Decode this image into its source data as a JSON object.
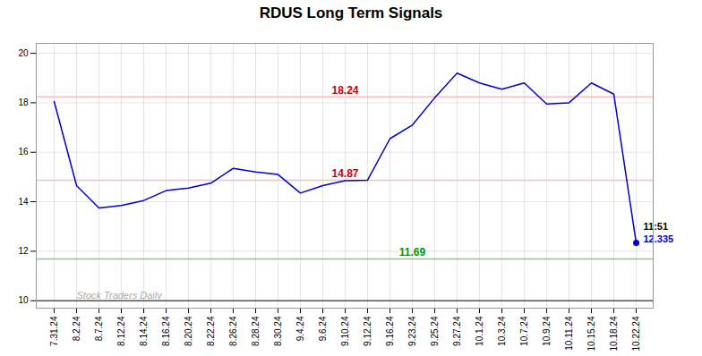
{
  "chart_data": {
    "type": "line",
    "title": "RDUS Long Term Signals",
    "categories": [
      "7.31.24",
      "8.2.24",
      "8.7.24",
      "8.12.24",
      "8.14.24",
      "8.16.24",
      "8.20.24",
      "8.22.24",
      "8.26.24",
      "8.28.24",
      "8.30.24",
      "9.4.24",
      "9.6.24",
      "9.10.24",
      "9.12.24",
      "9.16.24",
      "9.23.24",
      "9.25.24",
      "9.27.24",
      "10.1.24",
      "10.3.24",
      "10.7.24",
      "10.9.24",
      "10.11.24",
      "10.15.24",
      "10.18.24",
      "10.22.24"
    ],
    "values": [
      18.05,
      14.65,
      13.75,
      13.85,
      14.05,
      14.45,
      14.55,
      14.75,
      15.35,
      15.2,
      15.1,
      14.35,
      14.65,
      14.85,
      14.87,
      16.55,
      17.1,
      18.2,
      19.2,
      18.8,
      18.55,
      18.8,
      17.95,
      18.0,
      18.8,
      18.35,
      12.335
    ],
    "color": "#0000cc",
    "ylim": [
      9.7,
      20.4
    ],
    "yticks": [
      10,
      12,
      14,
      16,
      18,
      20
    ],
    "grid": true,
    "reference_lines": [
      {
        "y": 18.24,
        "color": "#ffbbbb",
        "label": "18.24",
        "label_color": "#cc0000",
        "label_at": "9.10.24"
      },
      {
        "y": 14.87,
        "color": "#ffbbbb",
        "label": "14.87",
        "label_color": "#cc0000",
        "label_at": "9.10.24"
      },
      {
        "y": 11.69,
        "color": "#88cc88",
        "label": "11.69",
        "label_color": "#009900",
        "label_at": "9.23.24"
      },
      {
        "y": 10,
        "color": "#555555"
      }
    ],
    "last_point": {
      "x": "10.22.24",
      "y": 12.335,
      "color": "#0000cc",
      "labels": [
        {
          "text": "11:51",
          "color": "#000000"
        },
        {
          "text": "12.335",
          "color": "#0000cc"
        }
      ]
    },
    "watermark": {
      "text": "Stock Traders Daily",
      "x": "8.2.24",
      "y": 10.08,
      "color": "#aaaaaa"
    }
  }
}
